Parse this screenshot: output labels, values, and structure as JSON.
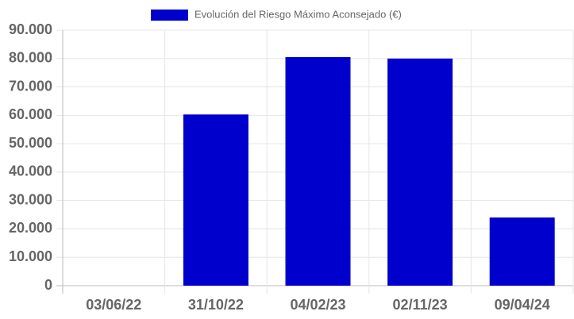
{
  "chart_data": {
    "type": "bar",
    "legend": "Evolución del Riesgo Máximo Aconsejado (€)",
    "categories": [
      "03/06/22",
      "31/10/22",
      "04/02/23",
      "02/11/23",
      "09/04/24"
    ],
    "values": [
      0,
      60300,
      80500,
      80000,
      24000
    ],
    "color": "#0000cd",
    "ylim": [
      0,
      90000
    ],
    "yticks": [
      0,
      {
        "value": 10000,
        "label": "10.000"
      },
      {
        "value": 20000,
        "label": "20.000"
      },
      {
        "value": 30000,
        "label": "30.000"
      },
      {
        "value": 40000,
        "label": "40.000"
      },
      {
        "value": 50000,
        "label": "50.000"
      },
      {
        "value": 60000,
        "label": "60.000"
      },
      {
        "value": 70000,
        "label": "70.000"
      },
      {
        "value": 80000,
        "label": "80.000"
      },
      {
        "value": 90000,
        "label": "90.000"
      }
    ],
    "grid": true
  }
}
